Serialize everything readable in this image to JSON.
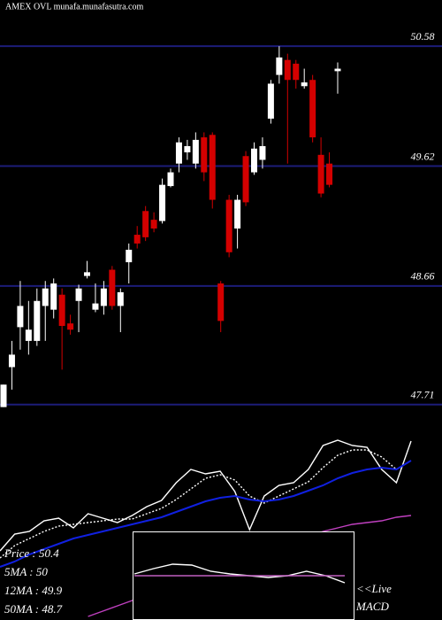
{
  "chart_data": {
    "type": "candlestick",
    "title": "AMEX  OVL munafa.munafasutra.com",
    "ylim": [
      47.51,
      50.95
    ],
    "yticks": [
      47.71,
      48.66,
      49.62,
      50.58
    ],
    "grid": true,
    "up_color": "#ffffff",
    "down_color": "#d40000",
    "grid_color": "#1c1c78",
    "open": [
      47.69,
      48.01,
      48.33,
      48.22,
      48.22,
      48.5,
      48.47,
      48.59,
      48.36,
      48.54,
      48.74,
      48.47,
      48.5,
      48.79,
      48.5,
      48.85,
      49.07,
      49.26,
      49.19,
      49.18,
      49.46,
      49.64,
      49.73,
      49.64,
      49.85,
      49.87,
      48.68,
      49.35,
      49.12,
      49.7,
      49.57,
      49.67,
      50.0,
      50.35,
      50.47,
      50.44,
      50.26,
      50.31,
      49.71,
      49.64,
      50.38
    ],
    "high": [
      47.87,
      48.22,
      48.7,
      48.54,
      48.64,
      48.7,
      48.72,
      48.64,
      48.43,
      48.67,
      48.86,
      48.68,
      48.7,
      48.82,
      48.64,
      49.0,
      49.14,
      49.3,
      49.25,
      49.52,
      49.6,
      49.85,
      49.83,
      49.89,
      49.89,
      49.89,
      48.7,
      49.39,
      49.39,
      49.74,
      49.81,
      49.85,
      50.31,
      50.58,
      50.52,
      50.47,
      50.4,
      50.35,
      49.85,
      49.73,
      50.45
    ],
    "low": [
      47.69,
      47.83,
      48.15,
      48.11,
      48.18,
      48.22,
      48.4,
      47.99,
      48.27,
      48.29,
      48.72,
      48.45,
      48.43,
      48.47,
      48.29,
      48.68,
      48.96,
      49.02,
      49.09,
      49.16,
      49.45,
      49.57,
      49.67,
      49.6,
      49.5,
      49.28,
      48.29,
      48.89,
      48.96,
      49.3,
      49.55,
      49.6,
      49.96,
      50.28,
      49.64,
      50.24,
      50.24,
      49.81,
      49.37,
      49.45,
      50.2
    ],
    "close": [
      47.87,
      48.11,
      48.5,
      48.31,
      48.54,
      48.64,
      48.68,
      48.34,
      48.31,
      48.64,
      48.77,
      48.52,
      48.64,
      48.5,
      48.61,
      48.95,
      49.0,
      49.05,
      49.12,
      49.47,
      49.57,
      49.81,
      49.78,
      49.83,
      49.57,
      49.35,
      48.38,
      48.93,
      49.35,
      49.33,
      49.76,
      49.78,
      50.28,
      50.49,
      50.31,
      50.31,
      50.29,
      49.85,
      49.4,
      49.47,
      50.4
    ],
    "ma_panel": {
      "ylim": [
        0,
        105
      ],
      "series": [
        {
          "name": "Price",
          "color": "#ffffff",
          "style": "solid",
          "values": [
            39,
            48.5,
            50,
            56,
            57.5,
            52,
            60,
            57.5,
            55,
            59,
            64,
            67.5,
            77.5,
            85,
            82.5,
            84,
            72.5,
            51,
            70,
            76,
            77.5,
            85,
            98.5,
            101.5,
            98.5,
            97.5,
            85,
            77.5,
            101
          ]
        },
        {
          "name": "5MA",
          "color": "#ffffff",
          "style": "dotted",
          "values": [
            35,
            42,
            46,
            50,
            53,
            54,
            55,
            56,
            57,
            57,
            60,
            63,
            68,
            74,
            80,
            82,
            79,
            70,
            66,
            70,
            74,
            78,
            86,
            93,
            96,
            96,
            92,
            85,
            90
          ]
        },
        {
          "name": "12MA",
          "color": "#1020e0",
          "style": "solid",
          "values": [
            30,
            33,
            37,
            40,
            43,
            46,
            48,
            50,
            52,
            54,
            56,
            58,
            61,
            64,
            67,
            69,
            70,
            68,
            67,
            68,
            70,
            73,
            76,
            80,
            83,
            85,
            86,
            85,
            90
          ]
        },
        {
          "name": "50MA",
          "color": "#c040c0",
          "style": "solid",
          "values": [
            null,
            null,
            null,
            null,
            null,
            null,
            2,
            5,
            8,
            11,
            14,
            17,
            20,
            23,
            26,
            29,
            32,
            35,
            38,
            41,
            44,
            47,
            50,
            52,
            54,
            55,
            56,
            58,
            59
          ]
        }
      ]
    },
    "macd_panel": {
      "ylim": [
        0,
        100
      ],
      "series": [
        {
          "name": "MACD",
          "color": "#ffffff",
          "values": [
            52,
            58,
            63,
            62,
            55,
            52,
            50,
            48,
            50,
            55,
            50,
            42
          ]
        },
        {
          "name": "Signal",
          "color": "#c060c0",
          "values": [
            50,
            50,
            50,
            50,
            50,
            50,
            50,
            50,
            50,
            50,
            50,
            50
          ]
        }
      ]
    },
    "legend": [
      "Price   : 50.4",
      "5MA    : 50",
      "12MA  : 49.9",
      "50MA  : 48.7"
    ],
    "live_label": "<<Live",
    "macd_label": "MACD"
  }
}
